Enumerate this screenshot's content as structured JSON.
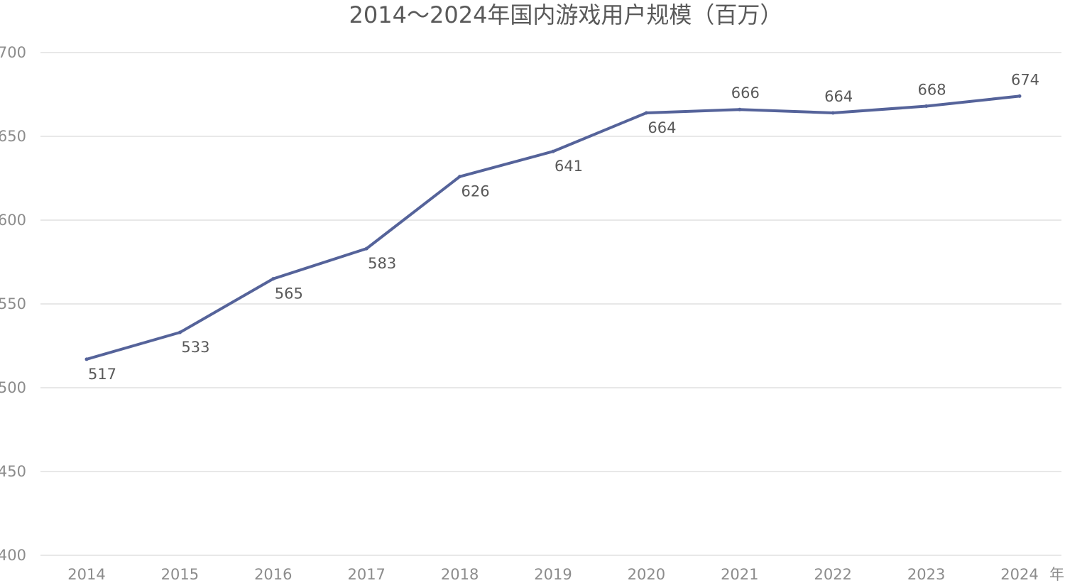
{
  "chart_data": {
    "type": "line",
    "title": "2014～2024年国内游戏用户规模（百万）",
    "x_unit_label": "年",
    "categories": [
      "2014",
      "2015",
      "2016",
      "2017",
      "2018",
      "2019",
      "2020",
      "2021",
      "2022",
      "2023",
      "2024"
    ],
    "series": [
      {
        "values": [
          517,
          533,
          565,
          583,
          626,
          641,
          664,
          666,
          664,
          668,
          674
        ],
        "data_labels": [
          "517",
          "533",
          "565",
          "583",
          "626",
          "641",
          "664",
          "666",
          "664",
          "668",
          "674"
        ],
        "color": "#55639a"
      }
    ],
    "ylim": [
      400,
      700
    ],
    "yticks": [
      400,
      450,
      500,
      550,
      600,
      650,
      700
    ],
    "grid": true,
    "legend": "none"
  }
}
